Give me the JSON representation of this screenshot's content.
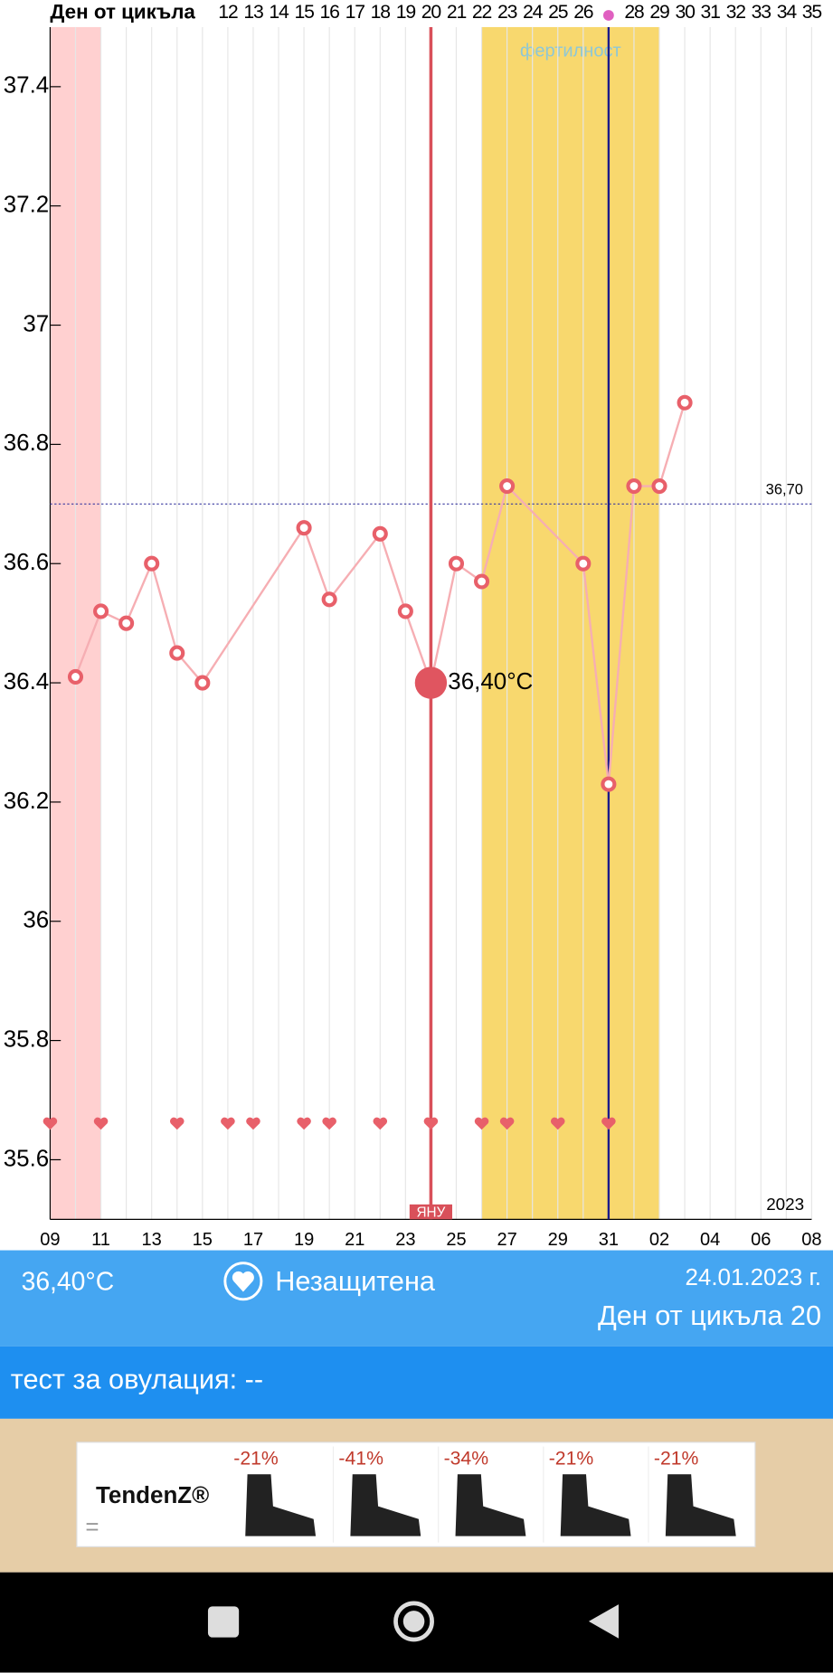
{
  "chart_data": {
    "type": "line",
    "header_title": "Ден от цикъла",
    "categories": [
      "09",
      null,
      "11",
      null,
      "13",
      null,
      "15",
      null,
      "17",
      null,
      "19",
      null,
      "21",
      null,
      "23",
      null,
      "25",
      null,
      "27",
      null,
      "29",
      null,
      "31",
      null,
      "02",
      null,
      "04",
      null,
      "06",
      null,
      "08"
    ],
    "cycle_days": [
      null,
      null,
      null,
      null,
      null,
      null,
      null,
      12,
      13,
      14,
      15,
      16,
      17,
      18,
      19,
      20,
      21,
      22,
      23,
      24,
      25,
      26,
      null,
      28,
      29,
      30,
      31,
      32,
      33,
      34,
      35
    ],
    "values": [
      null,
      36.41,
      36.52,
      36.5,
      36.6,
      36.45,
      36.4,
      null,
      null,
      null,
      36.66,
      36.54,
      null,
      36.65,
      36.52,
      36.4,
      36.6,
      36.57,
      36.73,
      null,
      null,
      36.6,
      36.23,
      36.73,
      36.73,
      36.87,
      null,
      null,
      null,
      null,
      null
    ],
    "color": "#e8606a",
    "line_color": "#f6aeb3",
    "ylim": [
      35.5,
      37.5
    ],
    "yticks": [
      35.6,
      35.8,
      36,
      36.2,
      36.4,
      36.6,
      36.8,
      37,
      37.2,
      37.4
    ],
    "grid": true,
    "reference": {
      "value": 36.7,
      "label": "36,70"
    },
    "selected_index": 15,
    "selected_label": "36,40°C",
    "month_label": "ЯНУ",
    "year_label": "2023",
    "menstruation_range": [
      0,
      2
    ],
    "fertile_range": [
      17,
      24
    ],
    "fertile_label": "фертилност",
    "ovulation_index": 22,
    "intercourse": [
      0,
      2,
      5,
      7,
      8,
      10,
      11,
      13,
      15,
      17,
      18,
      20,
      22
    ]
  },
  "summary": {
    "temperature": "36,40°C",
    "protection": "Незащитена",
    "date": "24.01.2023 г.",
    "cycle_day": "Ден от цикъла 20"
  },
  "ovulation_test": "тест за овулация: --",
  "ad": {
    "brand": "TendenZ®",
    "discounts": [
      "-21%",
      "-41%",
      "-34%",
      "-21%",
      "-21%"
    ]
  }
}
